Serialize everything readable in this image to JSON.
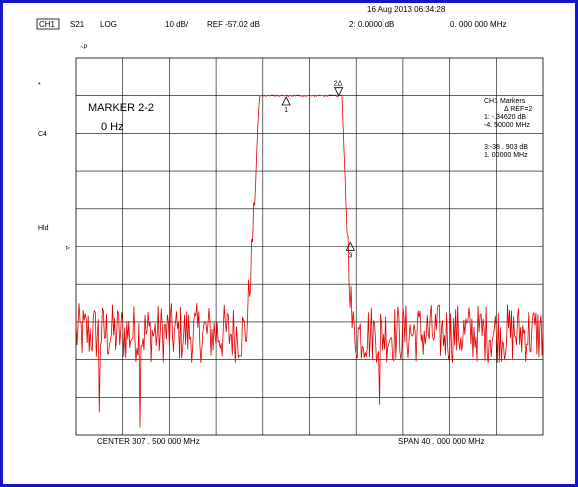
{
  "colors": {
    "frame": "#1414c8",
    "trace": "#e00000",
    "grid": "#000000",
    "background": "#ffffff"
  },
  "header": {
    "timestamp": "16 Aug 2013  06:34:28",
    "channel": "CH1",
    "param": "S21",
    "format": "LOG",
    "scale": "10 dB/",
    "ref": "REF -57.02 dB",
    "active_marker": "2:  0.0000   dB",
    "active_marker_freq": "0. 000   000   MHz"
  },
  "left_labels": {
    "tilde": "~P",
    "star": "*",
    "c4": "C4",
    "hld": "Hld",
    "ref_pointer": "▹"
  },
  "marker_box": {
    "title": "MARKER 2-2",
    "value": "0 Hz"
  },
  "markers_panel": {
    "title": "CH1  Markers",
    "subtitle": "Δ REF=2",
    "m1_level": "1:  -.34620   dB",
    "m1_freq": "-4. 50000   MHz",
    "m3_level": "3:-38 . 903   dB",
    "m3_freq": "1. 00000   MHz"
  },
  "footer": {
    "center": "CENTER    307 . 500   000   MHz",
    "span": "SPAN     40 . 000   000   MHz"
  },
  "chart_data": {
    "type": "line",
    "x_center_MHz": 307.5,
    "span_MHz": 40,
    "xlim_MHz": [
      287.5,
      327.5
    ],
    "y_scale_dB_per_div": 10,
    "ylim_dB": [
      -100,
      0
    ],
    "grid": true,
    "markers": [
      {
        "id": "1",
        "label": "1",
        "x_MHz": 305.5,
        "y_dB": -10.35
      },
      {
        "id": "2",
        "label": "2Δ",
        "x_MHz": 310.0,
        "y_dB": -10.0
      },
      {
        "id": "3",
        "label": "3",
        "x_MHz": 311.0,
        "y_dB": -48.9
      }
    ],
    "trace": {
      "passband_dB": -10.0,
      "floor_center_dB": -73,
      "floor_amplitude_dB": 8,
      "left_skirt_MHz": [
        302.0,
        303.2
      ],
      "right_skirt_MHz": [
        310.3,
        311.2
      ],
      "deep_nulls": [
        {
          "x_MHz": 289.5,
          "y_dB": -94
        },
        {
          "x_MHz": 293.0,
          "y_dB": -98
        },
        {
          "x_MHz": 313.5,
          "y_dB": -92
        }
      ]
    }
  }
}
